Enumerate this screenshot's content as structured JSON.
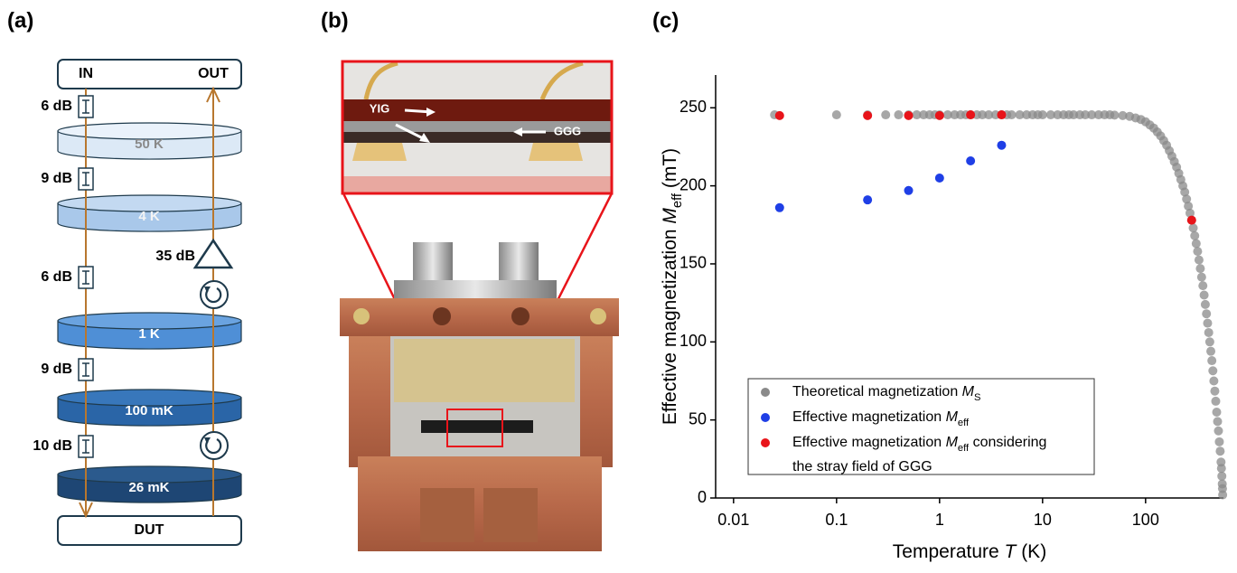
{
  "panel_labels": [
    "(a)",
    "(b)",
    "(c)"
  ],
  "diagram": {
    "input": "IN",
    "output": "OUT",
    "device": "DUT",
    "stages": [
      "50 K",
      "4 K",
      "1 K",
      "100 mK",
      "26 mK"
    ],
    "attenuators": [
      "6 dB",
      "9 dB",
      "6 dB",
      "9 dB",
      "10 dB"
    ],
    "amplifier": "35 dB"
  },
  "photo": {
    "labels": [
      "YIG",
      "GGG"
    ]
  },
  "chart_data": {
    "type": "scatter",
    "xlabel": {
      "pre": "Temperature ",
      "var": "T",
      "post": " (K)"
    },
    "ylabel": {
      "pre": "Effective magnetization ",
      "var": "M",
      "sub": "eff",
      "post": " (mT)"
    },
    "xscale": "log",
    "xlim": [
      0.0067,
      570
    ],
    "ylim": [
      0,
      271
    ],
    "xticks": [
      0.01,
      0.1,
      1,
      10,
      100
    ],
    "yticks": [
      0,
      50,
      100,
      150,
      200,
      250
    ],
    "legend": "lower left",
    "series": [
      {
        "name": {
          "pre": "Theoretical magnetization ",
          "var": "M",
          "sub": "S"
        },
        "color": "#8a8a8a",
        "x": [
          0.025,
          0.1,
          0.2,
          0.3,
          0.4,
          0.5,
          0.6,
          0.7,
          0.8,
          0.9,
          1,
          1.2,
          1.4,
          1.6,
          1.8,
          2,
          2.3,
          2.6,
          3,
          3.5,
          4,
          4.5,
          5,
          6,
          7,
          8,
          9,
          10,
          12,
          14,
          16,
          18,
          20,
          23,
          26,
          30,
          35,
          40,
          45,
          50,
          60,
          70,
          80,
          90,
          100,
          110,
          120,
          130,
          140,
          150,
          160,
          170,
          180,
          190,
          200,
          210,
          220,
          230,
          240,
          250,
          260,
          270,
          280,
          290,
          300,
          310,
          320,
          330,
          340,
          350,
          360,
          370,
          380,
          390,
          400,
          410,
          420,
          430,
          440,
          450,
          460,
          470,
          480,
          490,
          500,
          510,
          520,
          530,
          540,
          545,
          550,
          555,
          558,
          560
        ],
        "values": [
          245.5,
          245.5,
          245.5,
          245.5,
          245.5,
          245.5,
          245.5,
          245.5,
          245.5,
          245.5,
          245.5,
          245.5,
          245.5,
          245.5,
          245.5,
          245.5,
          245.5,
          245.5,
          245.5,
          245.5,
          245.5,
          245.5,
          245.5,
          245.5,
          245.5,
          245.5,
          245.5,
          245.5,
          245.5,
          245.5,
          245.5,
          245.5,
          245.5,
          245.5,
          245.5,
          245.5,
          245.5,
          245.5,
          245.5,
          245.3,
          245,
          244.5,
          243.5,
          242.5,
          241,
          239,
          237,
          234.5,
          232,
          229,
          226,
          222.5,
          219,
          215.5,
          212,
          208,
          204,
          200,
          196,
          191.5,
          187,
          182.5,
          178,
          173,
          168,
          163,
          158,
          152.5,
          147,
          141.5,
          136,
          130,
          124,
          118,
          112,
          106,
          100,
          94,
          88,
          81.5,
          75,
          68.5,
          62,
          55,
          49,
          43,
          36,
          30,
          23,
          19,
          14,
          9,
          6,
          2
        ]
      },
      {
        "name": {
          "pre": "Effective magnetization ",
          "var": "M",
          "sub": "eff"
        },
        "color": "#1f3fe6",
        "x": [
          0.028,
          0.2,
          0.5,
          1,
          2,
          4
        ],
        "values": [
          186,
          191,
          197,
          205,
          216,
          226
        ]
      },
      {
        "name": {
          "pre": "Effective magnetization ",
          "var": "M",
          "sub": "eff",
          "post": " considering",
          "line2": "the stray field of GGG"
        },
        "color": "#e8141a",
        "x": [
          0.028,
          0.2,
          0.5,
          1,
          2,
          4,
          280
        ],
        "values": [
          245,
          245,
          245,
          245,
          245.5,
          245.5,
          178
        ]
      }
    ]
  }
}
